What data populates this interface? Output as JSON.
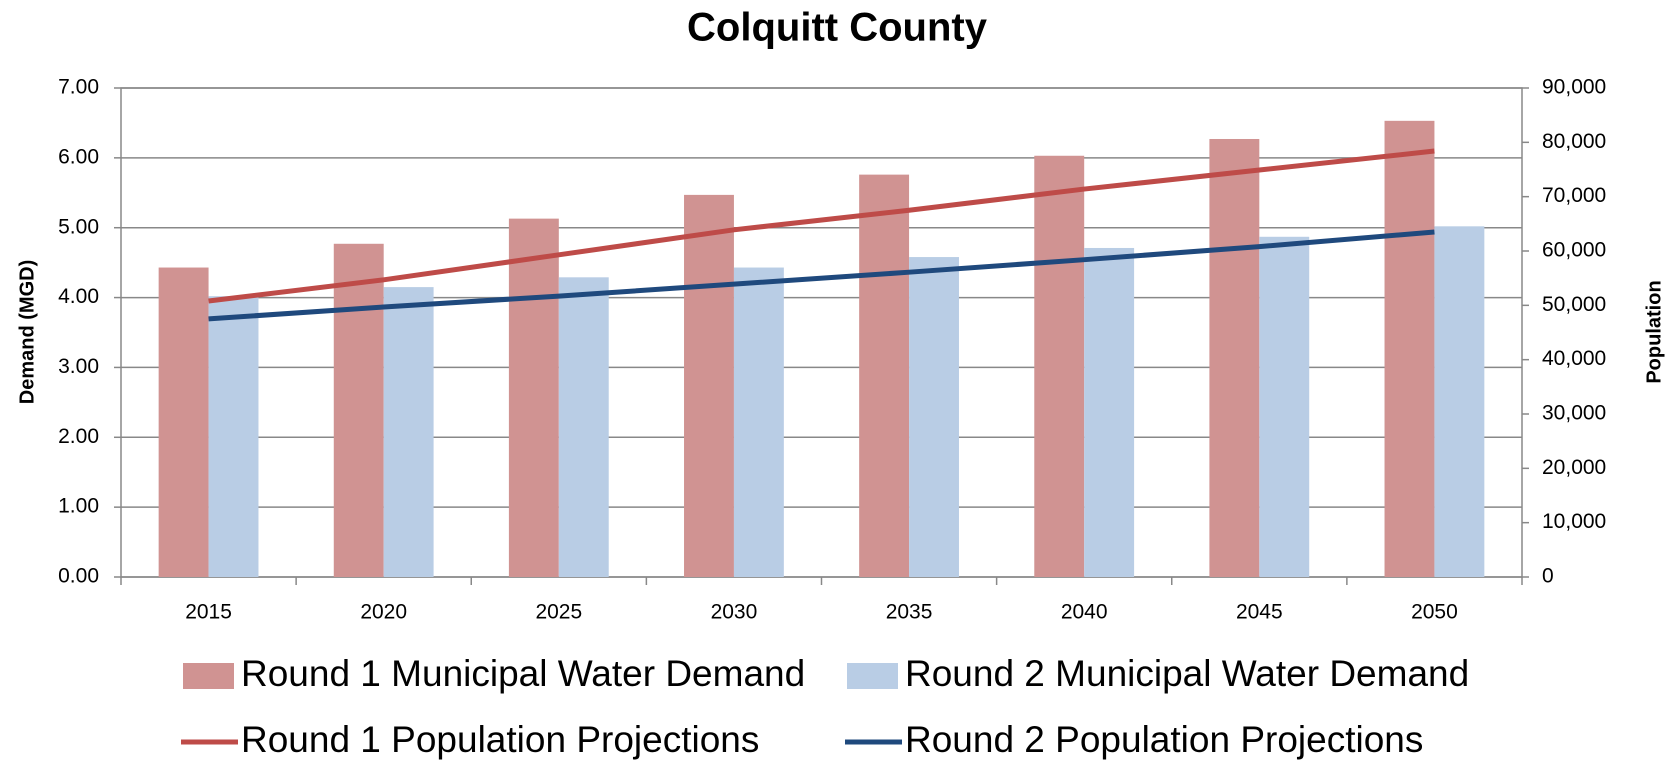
{
  "chart_data": {
    "type": "bar-line",
    "title": "Colquitt County",
    "ylabel": "Demand (MGD)",
    "y2label": "Population",
    "categories": [
      "2015",
      "2020",
      "2025",
      "2030",
      "2035",
      "2040",
      "2045",
      "2050"
    ],
    "series": [
      {
        "name": "Round 1 Municipal Water Demand",
        "type": "bar",
        "color": "#d09392",
        "values": [
          4.43,
          4.77,
          5.13,
          5.47,
          5.76,
          6.03,
          6.27,
          6.53
        ]
      },
      {
        "name": "Round 2 Municipal Water Demand",
        "type": "bar",
        "color": "#b9cde5",
        "values": [
          4.02,
          4.15,
          4.29,
          4.43,
          4.58,
          4.71,
          4.87,
          5.02
        ]
      },
      {
        "name": "Round 1 Population Projections",
        "type": "line",
        "axis": "y2",
        "color": "#be4b48",
        "values": [
          50800,
          54700,
          59300,
          63900,
          67500,
          71400,
          74900,
          78400
        ]
      },
      {
        "name": "Round 2 Population Projections",
        "type": "line",
        "axis": "y2",
        "color": "#1f497d",
        "values": [
          47500,
          49700,
          51700,
          53900,
          56100,
          58400,
          60800,
          63500
        ]
      }
    ],
    "ylim": [
      0,
      7
    ],
    "yticks": [
      {
        "value": 0,
        "label": "0.00"
      },
      {
        "value": 1,
        "label": "1.00"
      },
      {
        "value": 2,
        "label": "2.00"
      },
      {
        "value": 3,
        "label": "3.00"
      },
      {
        "value": 4,
        "label": "4.00"
      },
      {
        "value": 5,
        "label": "5.00"
      },
      {
        "value": 6,
        "label": "6.00"
      },
      {
        "value": 7,
        "label": "7.00"
      }
    ],
    "y2lim": [
      0,
      90000
    ],
    "y2ticks": [
      0,
      {
        "value": 10000,
        "label": "10,000"
      },
      {
        "value": 20000,
        "label": "20,000"
      },
      {
        "value": 30000,
        "label": "30,000"
      },
      {
        "value": 40000,
        "label": "40,000"
      },
      {
        "value": 50000,
        "label": "50,000"
      },
      {
        "value": 60000,
        "label": "60,000"
      },
      {
        "value": 70000,
        "label": "70,000"
      },
      {
        "value": 80000,
        "label": "80,000"
      },
      {
        "value": 90000,
        "label": "90,000"
      }
    ],
    "grid": true
  }
}
